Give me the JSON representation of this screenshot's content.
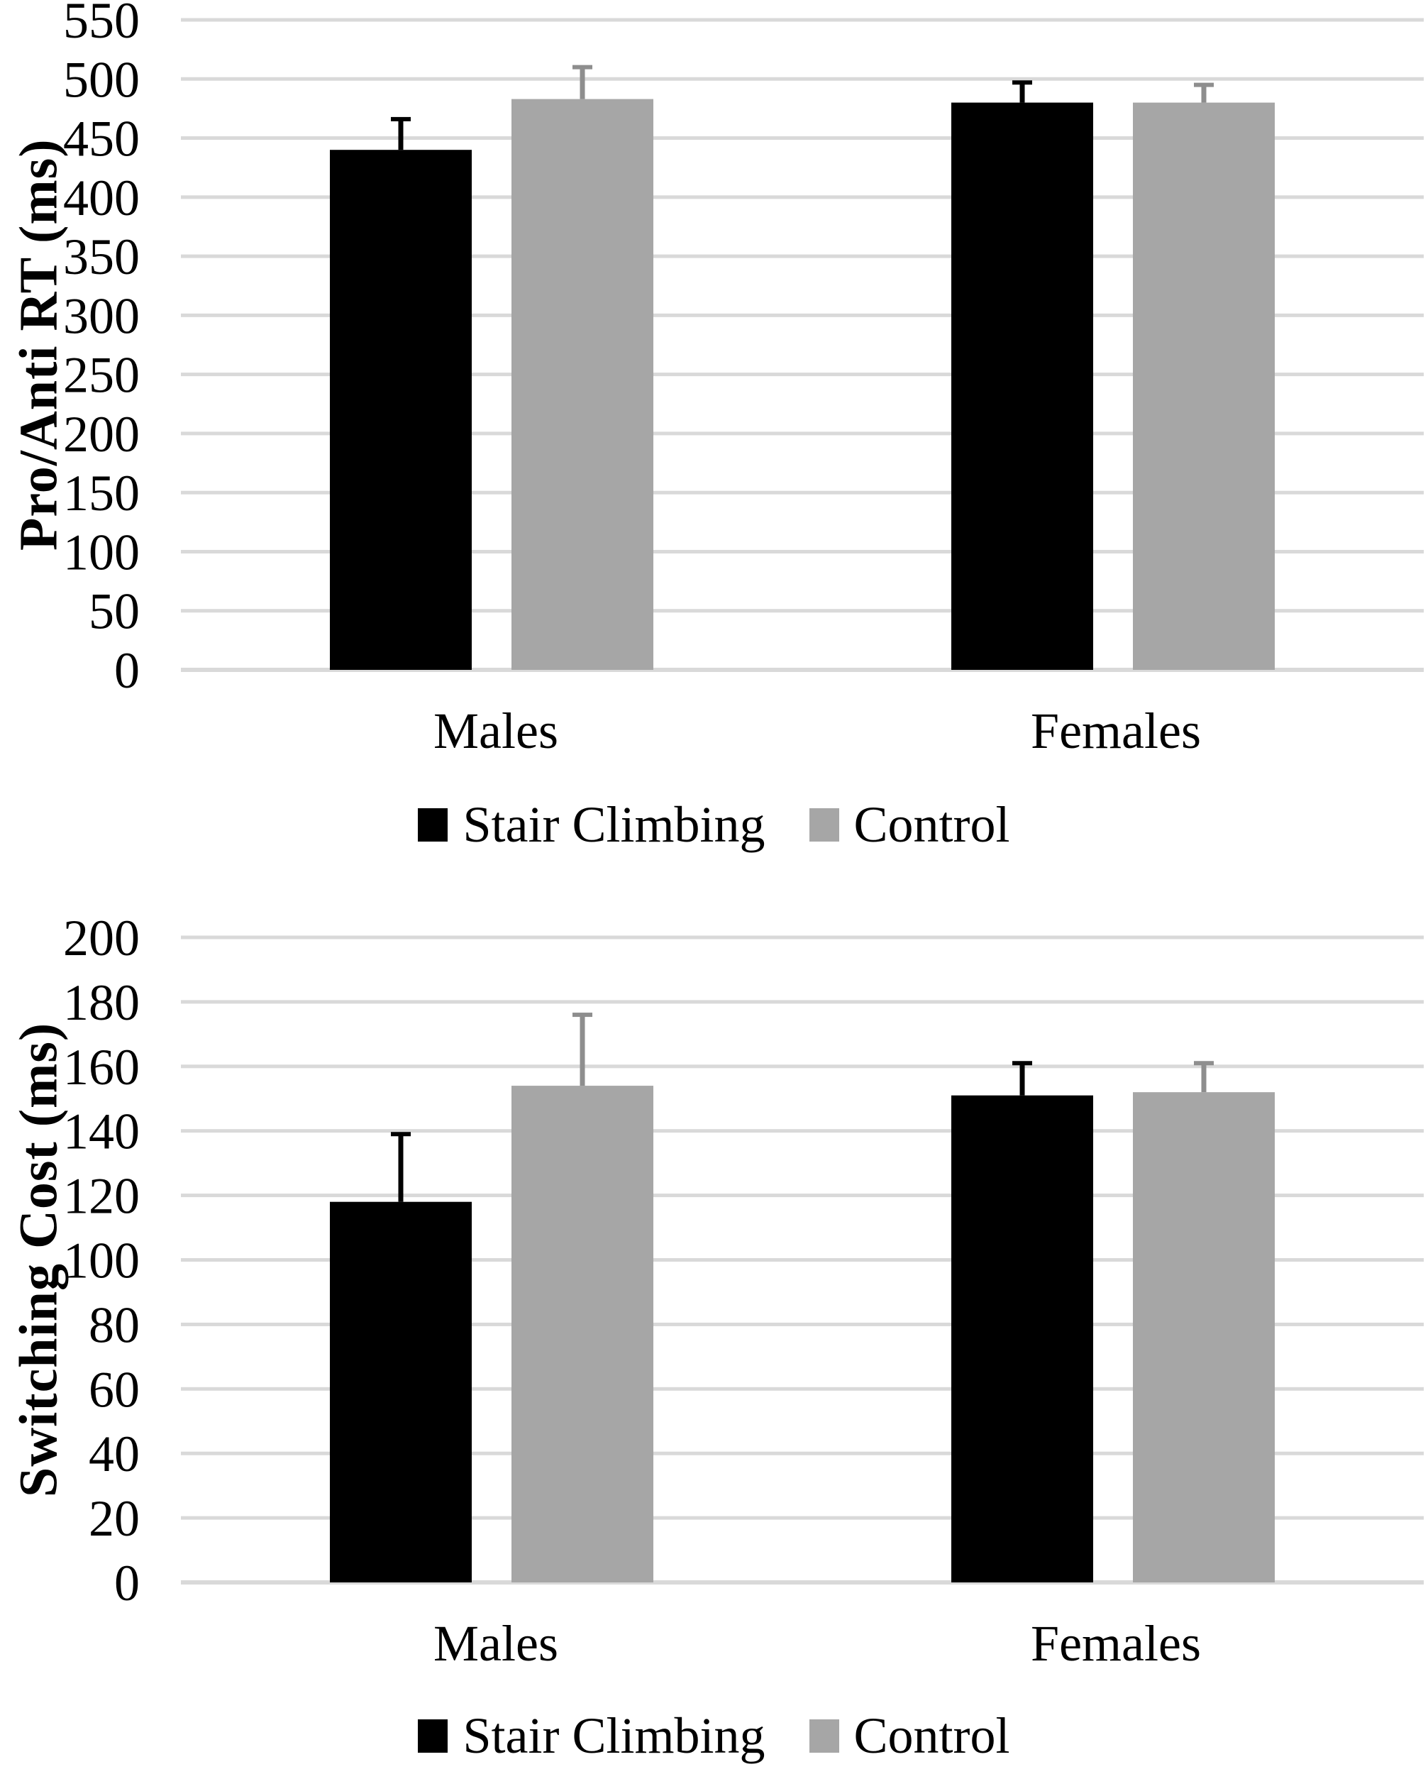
{
  "figure": {
    "background": "#ffffff",
    "description": "Two stacked grouped bar charts comparing Stair Climbing vs Control groups for Males and Females"
  },
  "colors": {
    "stair_climbing_fill": "#000000",
    "control_fill": "#a6a6a6",
    "stair_climbing_error": "#000000",
    "control_error": "#8e8e8e",
    "gridline": "#d9d9d9",
    "axis_line": "#d9d9d9",
    "text": "#000000"
  },
  "chart_data": [
    {
      "type": "bar",
      "title": "",
      "xlabel": "",
      "ylabel": "Pro/Anti RT (ms)",
      "categories": [
        "Males",
        "Females"
      ],
      "series": [
        {
          "name": "Stair Climbing",
          "color": "#000000",
          "values": [
            440,
            480
          ],
          "error_up": [
            26,
            17
          ]
        },
        {
          "name": "Control",
          "color": "#a6a6a6",
          "values": [
            483,
            480
          ],
          "error_up": [
            27,
            15
          ]
        }
      ],
      "ylim": [
        0,
        550
      ],
      "ytick_step": 50,
      "ytick_labels": [
        "0",
        "50",
        "100",
        "150",
        "200",
        "250",
        "300",
        "350",
        "400",
        "450",
        "500",
        "550"
      ],
      "grid": true,
      "error_bars": "upper whiskers with caps",
      "legend_position": "bottom"
    },
    {
      "type": "bar",
      "title": "",
      "xlabel": "",
      "ylabel": "Switching  Cost (ms)",
      "categories": [
        "Males",
        "Females"
      ],
      "series": [
        {
          "name": "Stair Climbing",
          "color": "#000000",
          "values": [
            118,
            151
          ],
          "error_up": [
            21,
            10
          ]
        },
        {
          "name": "Control",
          "color": "#a6a6a6",
          "values": [
            154,
            152
          ],
          "error_up": [
            22,
            9
          ]
        }
      ],
      "ylim": [
        0,
        200
      ],
      "ytick_step": 20,
      "ytick_labels": [
        "0",
        "20",
        "40",
        "60",
        "80",
        "100",
        "120",
        "140",
        "160",
        "180",
        "200"
      ],
      "grid": true,
      "error_bars": "upper whiskers with caps",
      "legend_position": "bottom"
    }
  ]
}
